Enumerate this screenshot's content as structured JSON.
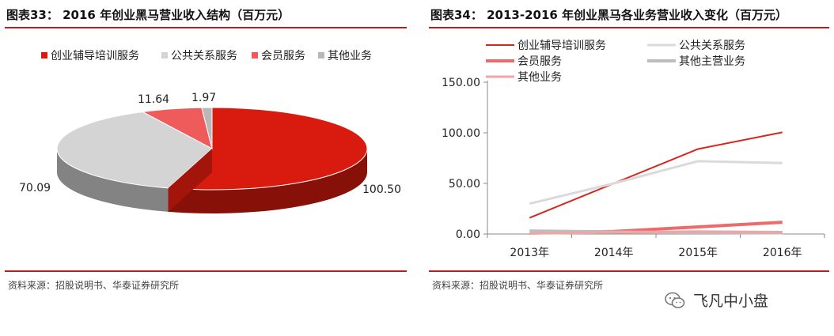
{
  "left": {
    "title": "图表33： 2016 年创业黑马营业收入结构（百万元）",
    "source": "资料来源：招股说明书、华泰证券研究所"
  },
  "right": {
    "title": "图表34： 2013-2016 年创业黑马各业务营业收入变化（百万元）",
    "source": "资料来源：招股说明书、华泰证券研究所"
  },
  "watermark": {
    "text": "飞凡中小盘",
    "icon": "wechat-icon"
  },
  "chart_data": [
    {
      "type": "pie",
      "title": "2016 年创业黑马营业收入结构（百万元）",
      "categories": [
        "创业辅导培训服务",
        "公共关系服务",
        "会员服务",
        "其他业务"
      ],
      "values": [
        100.5,
        70.09,
        11.64,
        1.97
      ],
      "value_labels": [
        "100.50",
        "70.09",
        "11.64",
        "1.97"
      ],
      "colors": [
        "#d91b0f",
        "#d4d4d4",
        "#ef5a5a",
        "#b8b8b8"
      ],
      "style": "3d",
      "legend_position": "top"
    },
    {
      "type": "line",
      "title": "2013-2016 年创业黑马各业务营业收入变化（百万元）",
      "categories": [
        "2013年",
        "2014年",
        "2015年",
        "2016年"
      ],
      "series": [
        {
          "name": "创业辅导培训服务",
          "values": [
            16,
            50,
            84,
            100.5
          ],
          "color": "#d7261e",
          "width": 2
        },
        {
          "name": "公共关系服务",
          "values": [
            30,
            50,
            72,
            70.09
          ],
          "color": "#dadada",
          "width": 3
        },
        {
          "name": "会员服务",
          "values": [
            1,
            2.5,
            7,
            11.64
          ],
          "color": "#ee6a6a",
          "width": 4
        },
        {
          "name": "其他主营业务",
          "values": [
            3,
            2,
            1.5,
            1.2
          ],
          "color": "#bdbdbd",
          "width": 4
        },
        {
          "name": "其他业务",
          "values": [
            0.5,
            1.5,
            2.5,
            1.97
          ],
          "color": "#f3a3a3",
          "width": 3
        }
      ],
      "yticks": [
        "150.00",
        "100.00",
        "50.00",
        "0.00"
      ],
      "ylim": [
        0,
        150
      ],
      "grid": false,
      "legend_position": "top-left"
    }
  ]
}
